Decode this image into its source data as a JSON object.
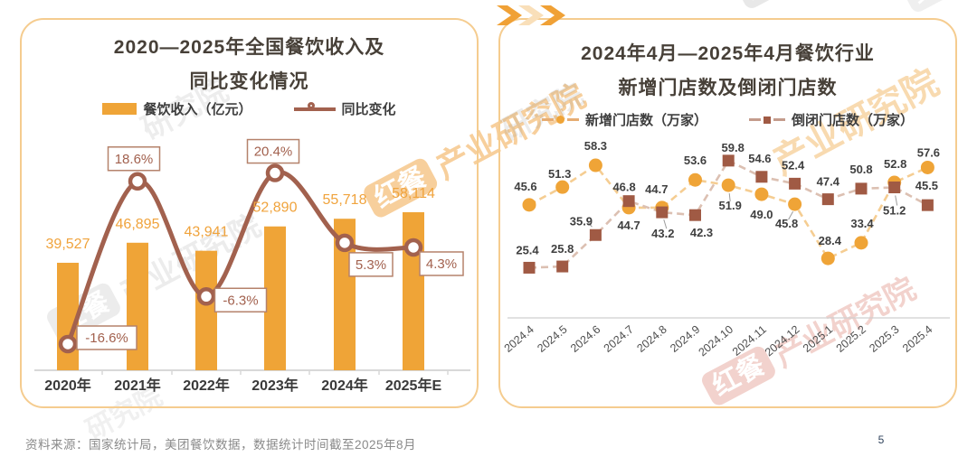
{
  "page": {
    "source_note": "资料来源：国家统计局，美团餐饮数据，数据统计时间截至2025年8月",
    "page_number": "5"
  },
  "brand": {
    "logo_text": "红餐",
    "watermark_text": "产业研究院",
    "watermark_short": "研究院"
  },
  "left_chart": {
    "title_line1": "2020—2025年全国餐饮收入及",
    "title_line2": "同比变化情况",
    "legend": [
      {
        "label": "餐饮收入（亿元）"
      },
      {
        "label": "同比变化"
      }
    ]
  },
  "right_chart": {
    "title_line1": "2024年4月—2025年4月餐饮行业",
    "title_line2": "新增门店数及倒闭门店数",
    "legend": [
      {
        "label": "新增门店数（万家）"
      },
      {
        "label": "倒闭门店数（万家）"
      }
    ]
  },
  "chart_data": [
    {
      "type": "bar",
      "title": "2020—2025年全国餐饮收入及同比变化情况",
      "categories": [
        "2020年",
        "2021年",
        "2022年",
        "2023年",
        "2024年",
        "2025年E"
      ],
      "series": [
        {
          "name": "餐饮收入（亿元）",
          "type": "bar",
          "color": "#EFA437",
          "values": [
            39527,
            46895,
            43941,
            52890,
            55718,
            58114
          ],
          "labels": [
            "39,527",
            "46,895",
            "43,941",
            "52,890",
            "55,718",
            "58,114"
          ]
        },
        {
          "name": "同比变化",
          "type": "line",
          "color": "#A2614E",
          "values": [
            -16.6,
            18.6,
            -6.3,
            20.4,
            5.3,
            4.3
          ],
          "labels": [
            "-16.6%",
            "18.6%",
            "-6.3%",
            "20.4%",
            "5.3%",
            "4.3%"
          ]
        }
      ],
      "grid": false,
      "legend_position": "top"
    },
    {
      "type": "line",
      "title": "2024年4月—2025年4月餐饮行业新增门店数及倒闭门店数",
      "categories": [
        "2024.4",
        "2024.5",
        "2024.6",
        "2024.7",
        "2024.8",
        "2024.9",
        "2024.10",
        "2024.11",
        "2024.12",
        "2025.1",
        "2025.2",
        "2025.3",
        "2025.4"
      ],
      "series": [
        {
          "name": "新增门店数（万家）",
          "marker": "circle",
          "color": "#EFA437",
          "line_color": "#F5CD92",
          "values": [
            45.6,
            51.3,
            58.3,
            44.7,
            44.7,
            53.6,
            51.9,
            49.0,
            45.8,
            28.4,
            33.4,
            52.8,
            57.6
          ]
        },
        {
          "name": "倒闭门店数（万家）",
          "marker": "square",
          "color": "#A05A44",
          "line_color": "#DCC0B2",
          "values": [
            25.4,
            25.8,
            35.9,
            46.8,
            43.2,
            42.3,
            59.8,
            54.6,
            52.4,
            47.4,
            50.8,
            51.2,
            45.5
          ]
        }
      ],
      "grid": false,
      "legend_position": "top"
    }
  ],
  "colors": {
    "bar_orange": "#EFA437",
    "line_brown": "#A2614E",
    "new_store_marker": "#EFA437",
    "new_store_line": "#F5CD92",
    "closed_store_marker": "#A05A44",
    "closed_store_line": "#DCC0B2",
    "panel_border": "#F5CC8F",
    "accent_red": "#D8432F"
  }
}
